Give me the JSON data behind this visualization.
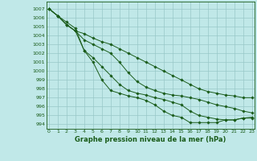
{
  "title": "Graphe pression niveau de la mer (hPa)",
  "xlabel_fontsize": 6,
  "bg_color": "#c0e8e8",
  "grid_color": "#98c8c8",
  "line_color": "#1a5c1a",
  "marker_color": "#1a5c1a",
  "ylim": [
    993.5,
    1007.8
  ],
  "xlim": [
    -0.3,
    23.3
  ],
  "yticks": [
    994,
    995,
    996,
    997,
    998,
    999,
    1000,
    1001,
    1002,
    1003,
    1004,
    1005,
    1006,
    1007
  ],
  "xticks": [
    0,
    1,
    2,
    3,
    4,
    5,
    6,
    7,
    8,
    9,
    10,
    11,
    12,
    13,
    14,
    15,
    16,
    17,
    18,
    19,
    20,
    21,
    22,
    23
  ],
  "series": [
    [
      1007.0,
      1006.2,
      1005.2,
      1004.5,
      1004.2,
      1003.7,
      1003.3,
      1003.0,
      1002.5,
      1002.0,
      1001.5,
      1001.0,
      1000.5,
      1000.0,
      999.5,
      999.0,
      998.5,
      998.0,
      997.7,
      997.5,
      997.3,
      997.2,
      997.0,
      997.0
    ],
    [
      1007.0,
      1006.2,
      1005.2,
      1004.5,
      1003.5,
      1003.0,
      1002.5,
      1002.0,
      1001.0,
      999.8,
      998.8,
      998.2,
      997.8,
      997.5,
      997.3,
      997.2,
      997.0,
      996.8,
      996.5,
      996.2,
      996.0,
      995.8,
      995.5,
      995.3
    ],
    [
      1007.0,
      1006.2,
      1005.2,
      1004.5,
      1002.3,
      1001.5,
      1000.5,
      999.5,
      998.5,
      997.8,
      997.5,
      997.3,
      997.0,
      996.8,
      996.5,
      996.2,
      995.5,
      995.0,
      994.8,
      994.6,
      994.5,
      994.5,
      994.7,
      994.8
    ],
    [
      1007.0,
      1006.2,
      1005.5,
      1004.8,
      1002.3,
      1001.0,
      999.0,
      997.8,
      997.5,
      997.2,
      997.0,
      996.7,
      996.2,
      995.5,
      995.0,
      994.8,
      994.2,
      994.2,
      994.2,
      994.2,
      994.5,
      994.5,
      994.7,
      994.7
    ]
  ]
}
